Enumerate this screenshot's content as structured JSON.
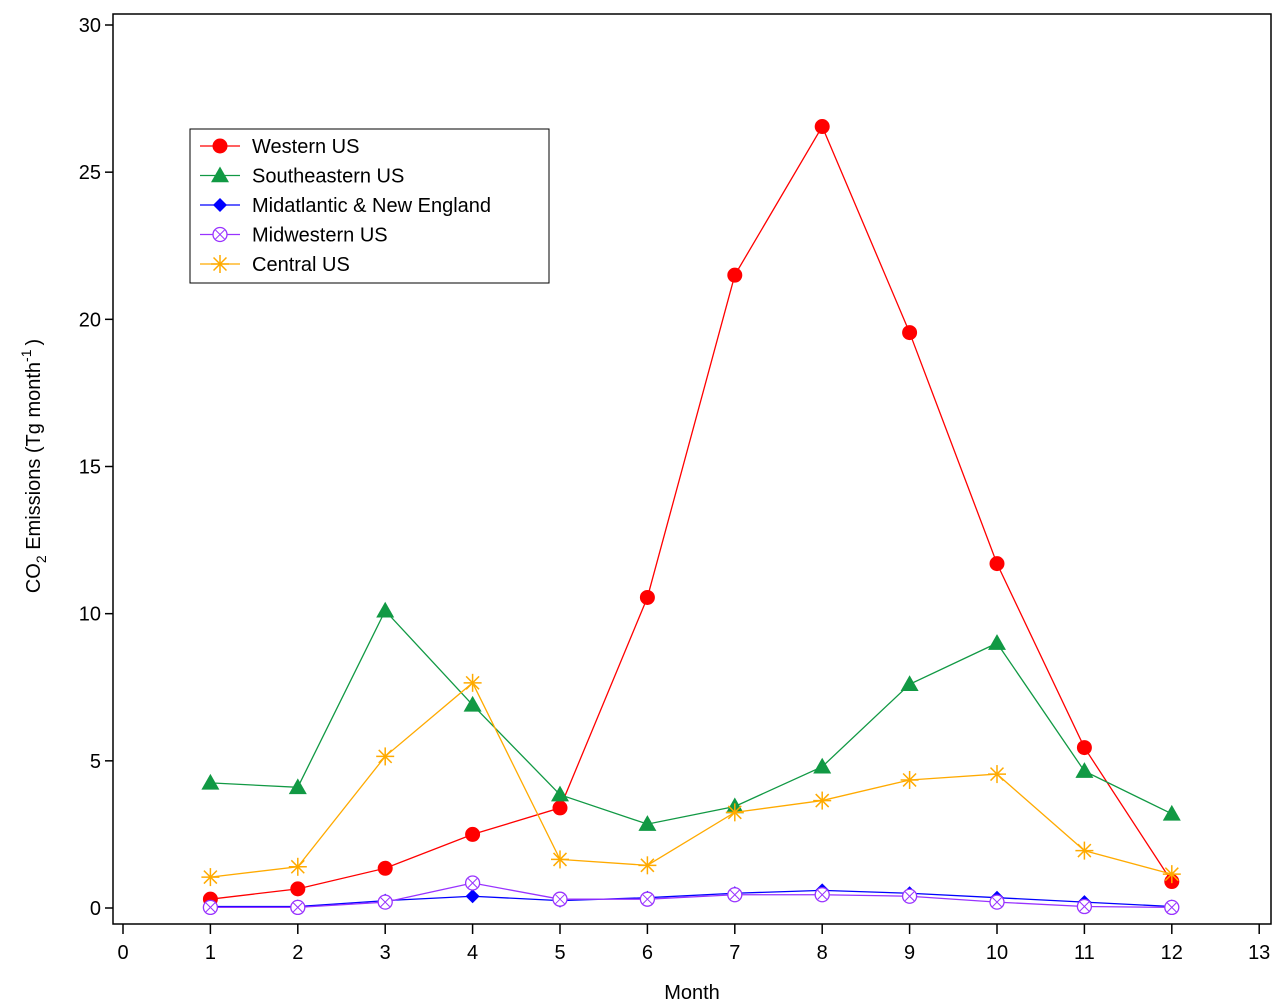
{
  "chart_data": {
    "type": "line",
    "title": "",
    "xlabel": "Month",
    "ylabel": {
      "prefix": "CO",
      "sub": "2",
      "middle": " Emissions (Tg month",
      "sup": "-1",
      "suffix": ")"
    },
    "xlim": [
      0,
      13
    ],
    "ylim": [
      -0.6,
      30
    ],
    "xticks": [
      0,
      1,
      2,
      3,
      4,
      5,
      6,
      7,
      8,
      9,
      10,
      11,
      12,
      13
    ],
    "yticks": [
      0,
      5,
      10,
      15,
      20,
      25,
      30
    ],
    "grid": false,
    "legend_position": "top-left",
    "x": [
      1,
      2,
      3,
      4,
      5,
      6,
      7,
      8,
      9,
      10,
      11,
      12
    ],
    "series": [
      {
        "name": "Western US",
        "color": "#ff0000",
        "marker": "circle",
        "values": [
          0.3,
          0.65,
          1.35,
          2.5,
          3.4,
          10.55,
          21.5,
          26.55,
          19.55,
          11.7,
          5.45,
          0.9
        ]
      },
      {
        "name": "Southeastern US",
        "color": "#119944",
        "marker": "triangle",
        "values": [
          4.25,
          4.1,
          10.1,
          6.9,
          3.85,
          2.85,
          3.45,
          4.8,
          7.6,
          9.0,
          4.65,
          3.2
        ]
      },
      {
        "name": "Midatlantic & New England",
        "color": "#0000ff",
        "marker": "diamond",
        "values": [
          0.05,
          0.05,
          0.25,
          0.4,
          0.25,
          0.35,
          0.5,
          0.6,
          0.5,
          0.35,
          0.2,
          0.05
        ]
      },
      {
        "name": "Midwestern US",
        "color": "#9933ff",
        "marker": "circle-x",
        "values": [
          0.02,
          0.02,
          0.2,
          0.85,
          0.3,
          0.3,
          0.45,
          0.45,
          0.4,
          0.2,
          0.05,
          0.02
        ]
      },
      {
        "name": "Central US",
        "color": "#ffaa00",
        "marker": "asterisk",
        "values": [
          1.05,
          1.4,
          5.15,
          7.65,
          1.65,
          1.45,
          3.25,
          3.65,
          4.35,
          4.55,
          1.95,
          1.15
        ]
      }
    ]
  }
}
